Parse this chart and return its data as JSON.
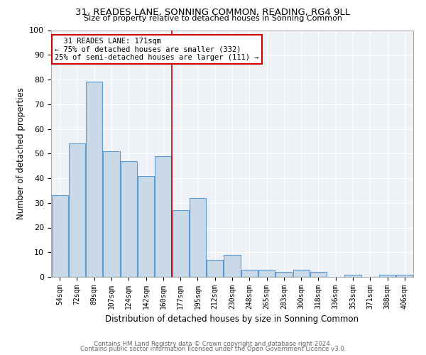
{
  "title_line1": "31, READES LANE, SONNING COMMON, READING, RG4 9LL",
  "title_line2": "Size of property relative to detached houses in Sonning Common",
  "xlabel": "Distribution of detached houses by size in Sonning Common",
  "ylabel": "Number of detached properties",
  "categories": [
    "54sqm",
    "72sqm",
    "89sqm",
    "107sqm",
    "124sqm",
    "142sqm",
    "160sqm",
    "177sqm",
    "195sqm",
    "212sqm",
    "230sqm",
    "248sqm",
    "265sqm",
    "283sqm",
    "300sqm",
    "318sqm",
    "336sqm",
    "353sqm",
    "371sqm",
    "388sqm",
    "406sqm"
  ],
  "values": [
    33,
    54,
    79,
    51,
    47,
    41,
    49,
    27,
    32,
    7,
    9,
    3,
    3,
    2,
    3,
    2,
    0,
    1,
    0,
    1,
    1
  ],
  "bar_color": "#c9d9e8",
  "bar_edge_color": "#5b9bd5",
  "vline_color": "#cc0000",
  "annotation_box_color": "#ffffff",
  "annotation_box_edge": "#cc0000",
  "ylim": [
    0,
    100
  ],
  "yticks": [
    0,
    10,
    20,
    30,
    40,
    50,
    60,
    70,
    80,
    90,
    100
  ],
  "footer_line1": "Contains HM Land Registry data © Crown copyright and database right 2024.",
  "footer_line2": "Contains public sector information licensed under the Open Government Licence v3.0.",
  "background_color": "#eef2f7"
}
